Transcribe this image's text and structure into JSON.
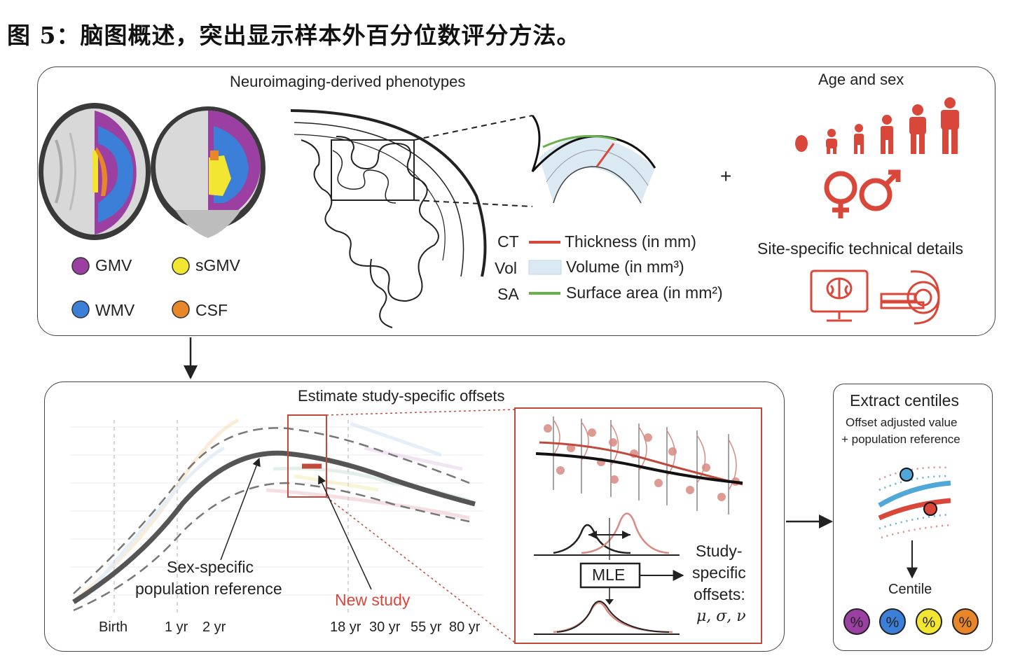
{
  "caption": "图 5：脑图概述，突出显示样本外百分位数评分方法。",
  "top_panel": {
    "title": "Neuroimaging-derived phenotypes",
    "tissue_legend": [
      {
        "label": "GMV",
        "color": "#9b3fa3"
      },
      {
        "label": "sGMV",
        "color": "#f2e632"
      },
      {
        "label": "WMV",
        "color": "#3b7fd9"
      },
      {
        "label": "CSF",
        "color": "#e8862a"
      }
    ],
    "measure_legend": [
      {
        "abbr": "CT",
        "label": "Thickness (in mm)",
        "color": "#d9473b"
      },
      {
        "abbr": "Vol",
        "label": "Volume (in mm³)",
        "color": "#dbe9f3"
      },
      {
        "abbr": "SA",
        "label": "Surface area (in mm²)",
        "color": "#6ab04c"
      }
    ],
    "plus": "+",
    "age_sex_title": "Age and sex",
    "site_title": "Site-specific technical details",
    "accent_color": "#d9473b"
  },
  "offset_panel": {
    "title": "Estimate study-specific offsets",
    "axis_ticks": [
      "Birth",
      "1 yr",
      "2 yr",
      "18 yr",
      "30 yr",
      "55 yr",
      "80 yr"
    ],
    "ref_label_line1": "Sex-specific",
    "ref_label_line2": "population reference",
    "new_study_label": "New study",
    "mle_label": "MLE",
    "offsets_line1": "Study-",
    "offsets_line2": "specific",
    "offsets_line3": "offsets:",
    "offsets_params": "μ, σ, ν"
  },
  "centile_panel": {
    "title": "Extract centiles",
    "subtitle_line1": "Offset adjusted value",
    "subtitle_line2": "+ population reference",
    "centile_label": "Centile",
    "badges": [
      {
        "symbol": "%",
        "color": "#9b3fa3"
      },
      {
        "symbol": "%",
        "color": "#3b7fd9"
      },
      {
        "symbol": "%",
        "color": "#f2e632"
      },
      {
        "symbol": "%",
        "color": "#e8862a"
      }
    ]
  }
}
